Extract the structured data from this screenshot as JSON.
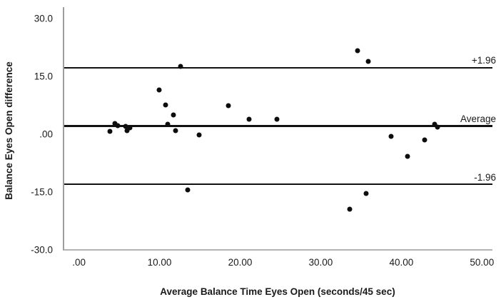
{
  "chart_data": {
    "type": "scatter",
    "title": "",
    "xlabel": "Average Balance Time Eyes Open (seconds/45 sec)",
    "ylabel": "Balance Eyes Open difference",
    "xlim": [
      -2.0,
      51.3
    ],
    "ylim": [
      -30.2,
      33.0
    ],
    "grid": false,
    "legend_position": "none",
    "axis_color": "#9e9e9e",
    "line_color": "#111111",
    "point_color": "#0d0d0d",
    "x_ticks": {
      "values": [
        0,
        10,
        20,
        30,
        40,
        50
      ],
      "labels": [
        ".00",
        "10.00",
        "20.00",
        "30.00",
        "40.00",
        "50.00"
      ]
    },
    "y_ticks": {
      "values": [
        30,
        15,
        0,
        -15,
        -30
      ],
      "labels": [
        "30.0",
        "15.0",
        ".00",
        "-15.0",
        "-30.0"
      ]
    },
    "reference_lines": [
      {
        "label": "+1.96",
        "value": 17.1,
        "thickness": 2
      },
      {
        "label": "Average",
        "value": 1.9,
        "thickness": 3
      },
      {
        "label": "-1.96",
        "value": -13.3,
        "thickness": 2
      }
    ],
    "points": [
      [
        3.7,
        0.5
      ],
      [
        4.3,
        2.7
      ],
      [
        4.7,
        2.0
      ],
      [
        5.6,
        1.8
      ],
      [
        5.8,
        0.8
      ],
      [
        6.2,
        1.5
      ],
      [
        9.8,
        11.3
      ],
      [
        10.6,
        7.4
      ],
      [
        11.6,
        4.9
      ],
      [
        10.9,
        2.5
      ],
      [
        11.9,
        0.8
      ],
      [
        12.5,
        17.5
      ],
      [
        13.4,
        -14.8
      ],
      [
        14.8,
        -0.4
      ],
      [
        18.4,
        7.3
      ],
      [
        21.0,
        3.7
      ],
      [
        24.5,
        3.7
      ],
      [
        34.5,
        21.6
      ],
      [
        35.8,
        18.8
      ],
      [
        33.5,
        -19.8
      ],
      [
        35.6,
        -15.7
      ],
      [
        38.7,
        -0.7
      ],
      [
        40.7,
        -5.9
      ],
      [
        42.9,
        -1.6
      ],
      [
        44.1,
        2.5
      ],
      [
        44.5,
        1.7
      ]
    ]
  }
}
